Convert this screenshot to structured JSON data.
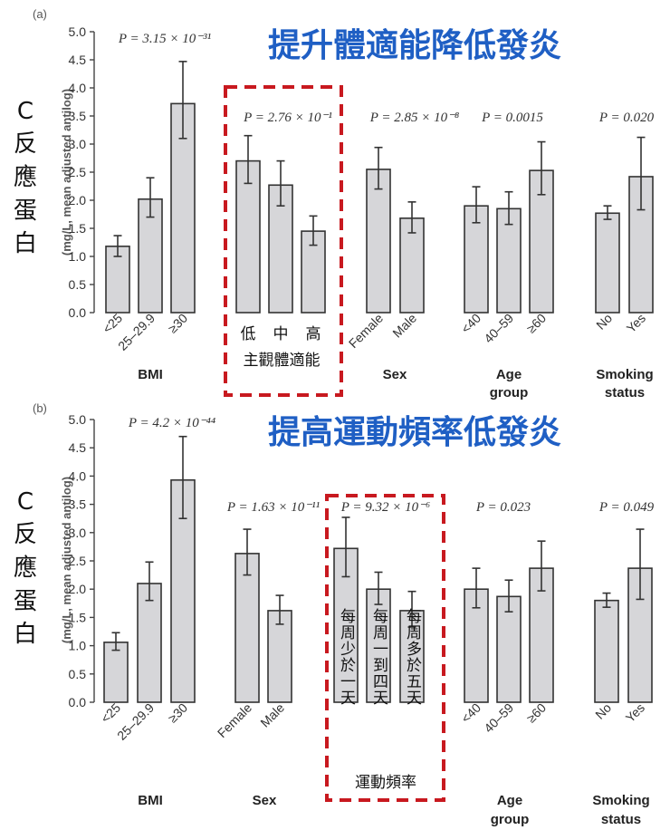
{
  "chart_data": [
    {
      "type": "bar",
      "panel_label": "(a)",
      "title": "提升體適能降低發炎",
      "side_label": [
        "C",
        "反",
        "應",
        "蛋",
        "白"
      ],
      "ylabel": "(mg/L, mean adjusted antilog)",
      "ylim": [
        0,
        5.0
      ],
      "yticks": [
        "0.0",
        "0.5",
        "1.0",
        "1.5",
        "2.0",
        "2.5",
        "3.0",
        "3.5",
        "4.0",
        "4.5",
        "5.0"
      ],
      "groups": [
        {
          "name": "BMI",
          "pvalue": "P = 3.15 × 10⁻³¹",
          "highlight": false,
          "categories": [
            "<25",
            "25–29.9",
            "≥30"
          ],
          "values": [
            1.18,
            2.02,
            3.72
          ],
          "err_low": [
            1.0,
            1.7,
            3.1
          ],
          "err_high": [
            1.37,
            2.4,
            4.47
          ]
        },
        {
          "name": "主觀體適能",
          "pvalue": "P = 2.76 × 10⁻¹",
          "highlight": true,
          "categories": [
            "低",
            "中",
            "高"
          ],
          "values": [
            2.7,
            2.27,
            1.45
          ],
          "err_low": [
            2.3,
            1.9,
            1.2
          ],
          "err_high": [
            3.15,
            2.7,
            1.72
          ]
        },
        {
          "name": "Sex",
          "pvalue": "P = 2.85 × 10⁻⁸",
          "highlight": false,
          "categories": [
            "Female",
            "Male"
          ],
          "values": [
            2.55,
            1.68
          ],
          "err_low": [
            2.2,
            1.42
          ],
          "err_high": [
            2.94,
            1.97
          ]
        },
        {
          "name": "Age group",
          "pvalue": "P = 0.0015",
          "highlight": false,
          "categories": [
            "<40",
            "40–59",
            "≥60"
          ],
          "values": [
            1.9,
            1.85,
            2.53
          ],
          "err_low": [
            1.6,
            1.57,
            2.1
          ],
          "err_high": [
            2.24,
            2.15,
            3.04
          ]
        },
        {
          "name": "Smoking status",
          "pvalue": "P = 0.020",
          "highlight": false,
          "categories": [
            "No",
            "Yes"
          ],
          "values": [
            1.77,
            2.42
          ],
          "err_low": [
            1.66,
            1.83
          ],
          "err_high": [
            1.9,
            3.12
          ]
        }
      ]
    },
    {
      "type": "bar",
      "panel_label": "(b)",
      "title": "提高運動頻率低發炎",
      "side_label": [
        "C",
        "反",
        "應",
        "蛋",
        "白"
      ],
      "ylabel": "(mg/L, mean adjusted antilog)",
      "ylim": [
        0,
        5.0
      ],
      "yticks": [
        "0.0",
        "0.5",
        "1.0",
        "1.5",
        "2.0",
        "2.5",
        "3.0",
        "3.5",
        "4.0",
        "4.5",
        "5.0"
      ],
      "groups": [
        {
          "name": "BMI",
          "pvalue": "P = 4.2 × 10⁻⁴⁴",
          "highlight": false,
          "categories": [
            "<25",
            "25–29.9",
            "≥30"
          ],
          "values": [
            1.06,
            2.1,
            3.93
          ],
          "err_low": [
            0.92,
            1.8,
            3.25
          ],
          "err_high": [
            1.23,
            2.48,
            4.7
          ]
        },
        {
          "name": "Sex",
          "pvalue": "P = 1.63 × 10⁻¹¹",
          "highlight": false,
          "categories": [
            "Female",
            "Male"
          ],
          "values": [
            2.63,
            1.62
          ],
          "err_low": [
            2.25,
            1.38
          ],
          "err_high": [
            3.06,
            1.89
          ]
        },
        {
          "name": "運動頻率",
          "pvalue": "P = 9.32 × 10⁻⁶",
          "highlight": true,
          "categories": [
            "每周少於一天",
            "每周一到四天",
            "每周多於五天"
          ],
          "values": [
            2.72,
            2.0,
            1.62
          ],
          "err_low": [
            2.22,
            1.73,
            1.33
          ],
          "err_high": [
            3.27,
            2.3,
            1.96
          ]
        },
        {
          "name": "Age group",
          "pvalue": "P = 0.023",
          "highlight": false,
          "categories": [
            "<40",
            "40–59",
            "≥60"
          ],
          "values": [
            2.0,
            1.87,
            2.37
          ],
          "err_low": [
            1.67,
            1.6,
            1.97
          ],
          "err_high": [
            2.37,
            2.16,
            2.85
          ]
        },
        {
          "name": "Smoking status",
          "pvalue": "P = 0.049",
          "highlight": false,
          "categories": [
            "No",
            "Yes"
          ],
          "values": [
            1.8,
            2.37
          ],
          "err_low": [
            1.68,
            1.82
          ],
          "err_high": [
            1.93,
            3.06
          ]
        }
      ]
    }
  ]
}
